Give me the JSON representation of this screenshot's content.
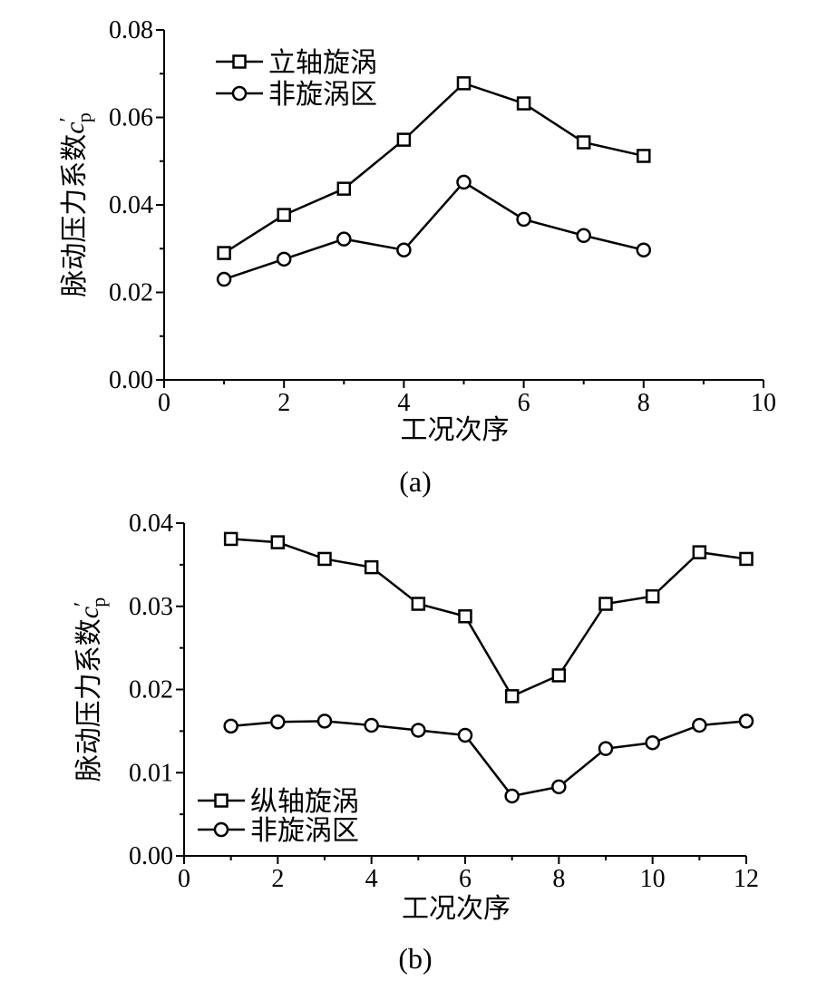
{
  "chart_data": [
    {
      "type": "line",
      "caption": "(a)",
      "xlabel": "工况次序",
      "ylabel": "脉动压力系数",
      "ylabel_symbol": "c",
      "ylabel_prime": "′",
      "ylabel_sub": "p",
      "xlim": [
        0,
        10
      ],
      "ylim": [
        0,
        0.08
      ],
      "xticks": [
        "0",
        "2",
        "4",
        "6",
        "8",
        "10"
      ],
      "xtick_values": [
        0,
        2,
        4,
        6,
        8,
        10
      ],
      "yticks": [
        "0.00",
        "0.02",
        "0.04",
        "0.06",
        "0.08"
      ],
      "ytick_values": [
        0,
        0.02,
        0.04,
        0.06,
        0.08
      ],
      "legend_position": "top-left",
      "x": [
        1,
        2,
        3,
        4,
        5,
        6,
        7,
        8
      ],
      "series": [
        {
          "name": "立轴旋涡",
          "marker": "square",
          "values": [
            0.029,
            0.0377,
            0.0437,
            0.0549,
            0.0678,
            0.0632,
            0.0543,
            0.0512
          ]
        },
        {
          "name": "非旋涡区",
          "marker": "circle",
          "values": [
            0.023,
            0.0276,
            0.0322,
            0.0297,
            0.0452,
            0.0367,
            0.033,
            0.0297
          ]
        }
      ]
    },
    {
      "type": "line",
      "caption": "(b)",
      "xlabel": "工况次序",
      "ylabel": "脉动压力系数",
      "ylabel_symbol": "c",
      "ylabel_prime": "′",
      "ylabel_sub": "p",
      "xlim": [
        0,
        12
      ],
      "ylim": [
        0,
        0.04
      ],
      "xticks": [
        "0",
        "2",
        "4",
        "6",
        "8",
        "10",
        "12"
      ],
      "xtick_values": [
        0,
        2,
        4,
        6,
        8,
        10,
        12
      ],
      "yticks": [
        "0.00",
        "0.01",
        "0.02",
        "0.03",
        "0.04"
      ],
      "ytick_values": [
        0,
        0.01,
        0.02,
        0.03,
        0.04
      ],
      "legend_position": "bottom-left",
      "x": [
        1,
        2,
        3,
        4,
        5,
        6,
        7,
        8,
        9,
        10,
        11,
        12
      ],
      "series": [
        {
          "name": "纵轴旋涡",
          "marker": "square",
          "values": [
            0.0381,
            0.0377,
            0.0357,
            0.0347,
            0.0303,
            0.0288,
            0.0192,
            0.0217,
            0.0303,
            0.0312,
            0.0365,
            0.0357
          ]
        },
        {
          "name": "非旋涡区",
          "marker": "circle",
          "values": [
            0.0156,
            0.0161,
            0.0162,
            0.0157,
            0.0151,
            0.0145,
            0.0072,
            0.0083,
            0.0129,
            0.0136,
            0.0157,
            0.0162
          ]
        }
      ]
    }
  ]
}
